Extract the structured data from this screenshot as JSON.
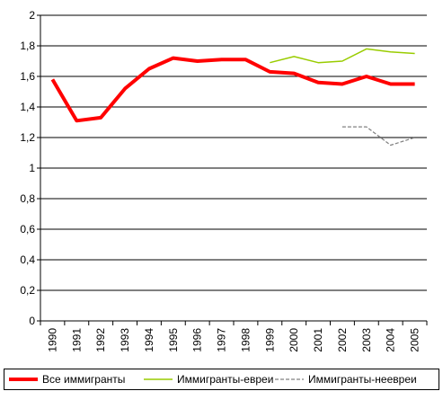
{
  "chart_data": {
    "type": "line",
    "x": [
      "1990",
      "1991",
      "1992",
      "1993",
      "1994",
      "1995",
      "1996",
      "1997",
      "1998",
      "1999",
      "2000",
      "2001",
      "2002",
      "2003",
      "2004",
      "2005"
    ],
    "ylim": [
      0,
      2
    ],
    "yticks": [
      "0",
      "0,2",
      "0,4",
      "0,6",
      "0,8",
      "1",
      "1,2",
      "1,4",
      "1,6",
      "1,8",
      "2"
    ],
    "grid": true,
    "legend_position": "bottom",
    "series": [
      {
        "name": "Все иммигранты",
        "color": "#ff0000",
        "style": "solid-thick",
        "values": [
          1.58,
          1.31,
          1.33,
          1.52,
          1.65,
          1.72,
          1.7,
          1.71,
          1.71,
          1.63,
          1.62,
          1.56,
          1.55,
          1.6,
          1.55,
          1.55
        ]
      },
      {
        "name": "Иммигранты-евреи",
        "color": "#99cc00",
        "style": "solid-thin",
        "values": [
          null,
          null,
          null,
          null,
          null,
          null,
          null,
          null,
          null,
          1.69,
          1.73,
          1.69,
          1.7,
          1.78,
          1.76,
          1.75
        ]
      },
      {
        "name": "Иммигранты-неевреи",
        "color": "#808080",
        "style": "dashed-thin",
        "values": [
          null,
          null,
          null,
          null,
          null,
          null,
          null,
          null,
          null,
          null,
          null,
          null,
          1.27,
          1.27,
          1.15,
          1.2
        ]
      }
    ]
  }
}
